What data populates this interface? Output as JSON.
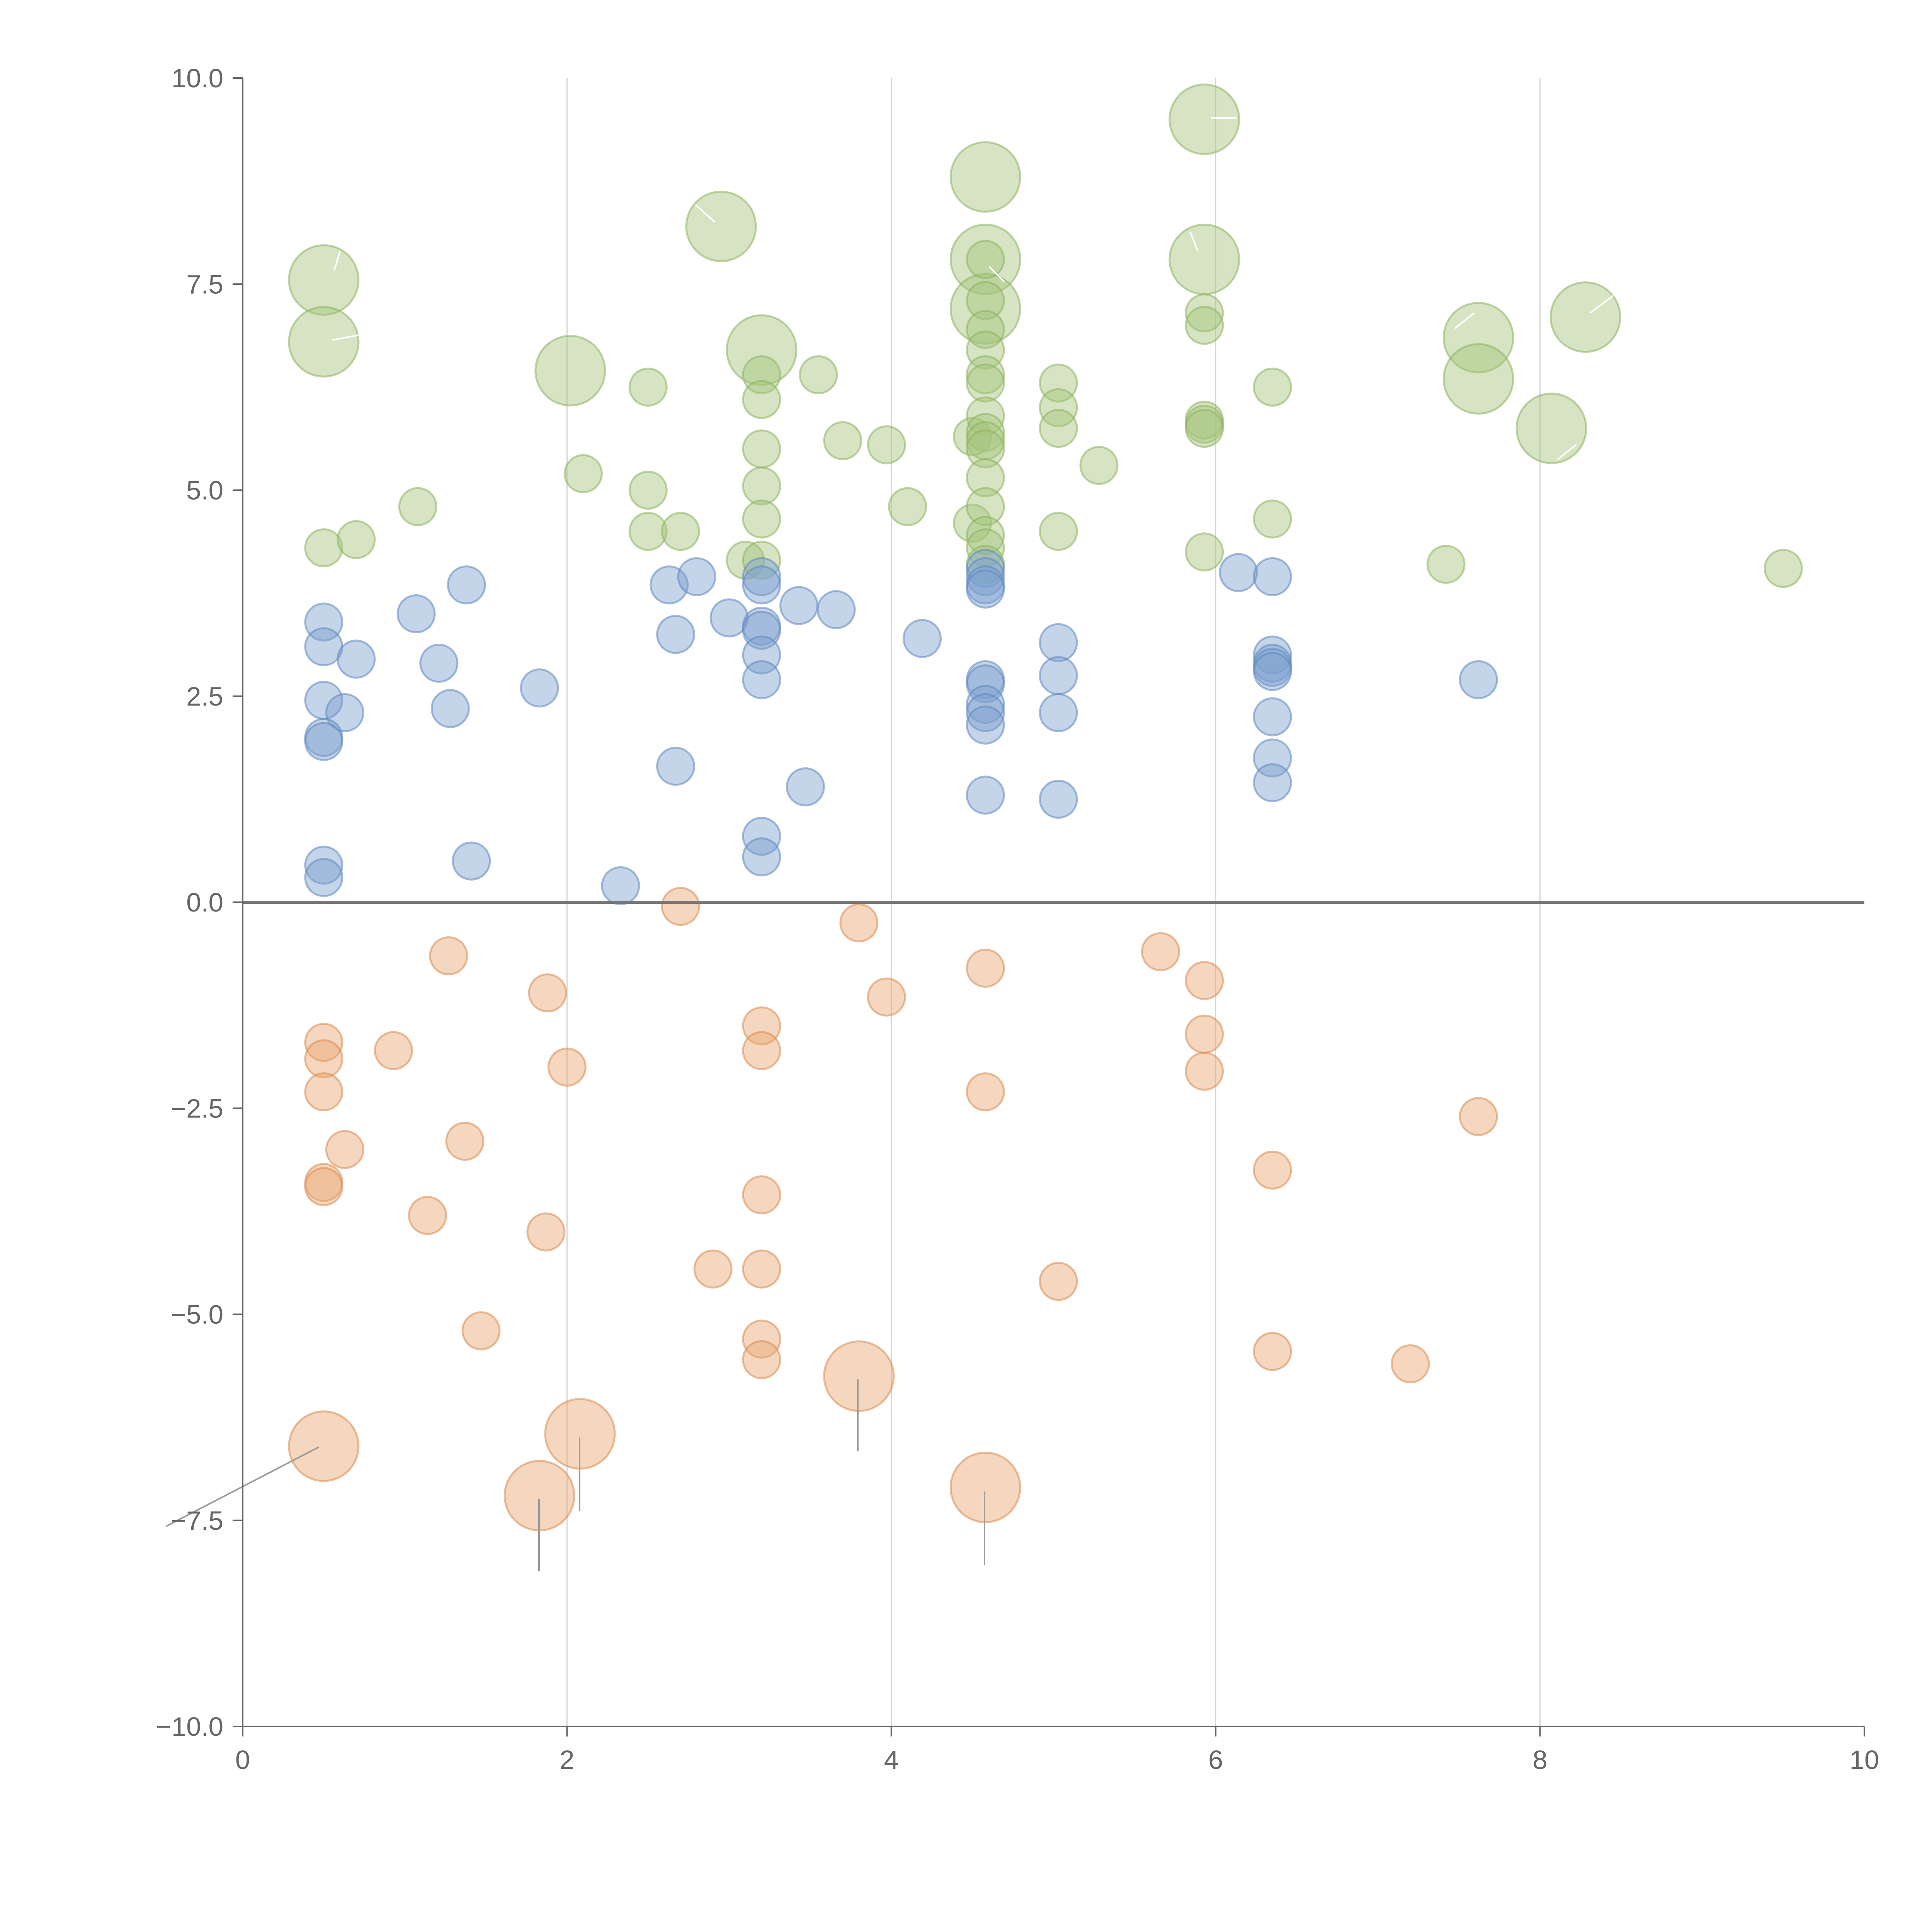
{
  "chart_data": {
    "type": "scatter",
    "title": "",
    "xlabel": "",
    "ylabel": "",
    "xlim": [
      0,
      10
    ],
    "ylim": [
      -10,
      10
    ],
    "x_ticks": [
      0,
      2,
      4,
      6,
      8,
      10
    ],
    "x_tick_labels": [
      "0",
      "2",
      "4",
      "6",
      "8",
      "10"
    ],
    "y_ticks": [
      -10,
      -7.5,
      -5,
      -2.5,
      0,
      2.5,
      5,
      7.5,
      10
    ],
    "y_tick_labels": [
      "−10.0",
      "−7.5",
      "−5.0",
      "−2.5",
      "0.0",
      "2.5",
      "5.0",
      "7.5",
      "10.0"
    ],
    "vertical_grid_at": [
      2,
      4,
      6,
      8
    ],
    "reference_line_y": 0,
    "marker_alpha": 0.45,
    "series": [
      {
        "name": "green",
        "color": "#a3c47a",
        "stroke": "#8db35e",
        "points": [
          {
            "x": 0.5,
            "y": 7.55,
            "s": "l"
          },
          {
            "x": 0.5,
            "y": 6.8,
            "s": "l"
          },
          {
            "x": 0.5,
            "y": 4.3
          },
          {
            "x": 0.7,
            "y": 4.4
          },
          {
            "x": 1.08,
            "y": 4.8
          },
          {
            "x": 2.02,
            "y": 6.45,
            "s": "l"
          },
          {
            "x": 2.1,
            "y": 5.2
          },
          {
            "x": 2.5,
            "y": 6.25
          },
          {
            "x": 2.5,
            "y": 5.0
          },
          {
            "x": 2.5,
            "y": 4.5
          },
          {
            "x": 2.7,
            "y": 4.5
          },
          {
            "x": 2.95,
            "y": 8.2,
            "s": "l"
          },
          {
            "x": 3.1,
            "y": 4.15
          },
          {
            "x": 3.2,
            "y": 6.7,
            "s": "l"
          },
          {
            "x": 3.2,
            "y": 6.4
          },
          {
            "x": 3.2,
            "y": 6.1
          },
          {
            "x": 3.2,
            "y": 5.5
          },
          {
            "x": 3.2,
            "y": 5.05
          },
          {
            "x": 3.2,
            "y": 4.65
          },
          {
            "x": 3.2,
            "y": 4.15
          },
          {
            "x": 3.55,
            "y": 6.4
          },
          {
            "x": 3.7,
            "y": 5.6
          },
          {
            "x": 3.97,
            "y": 5.55
          },
          {
            "x": 4.1,
            "y": 4.8
          },
          {
            "x": 4.5,
            "y": 5.65
          },
          {
            "x": 4.5,
            "y": 4.6
          },
          {
            "x": 4.58,
            "y": 8.8,
            "s": "l"
          },
          {
            "x": 4.58,
            "y": 7.8,
            "s": "l"
          },
          {
            "x": 4.58,
            "y": 7.2,
            "s": "l"
          },
          {
            "x": 4.58,
            "y": 7.8
          },
          {
            "x": 4.58,
            "y": 7.3
          },
          {
            "x": 4.58,
            "y": 6.95
          },
          {
            "x": 4.58,
            "y": 6.7
          },
          {
            "x": 4.58,
            "y": 6.4
          },
          {
            "x": 4.58,
            "y": 6.3
          },
          {
            "x": 4.58,
            "y": 5.9
          },
          {
            "x": 4.58,
            "y": 5.7
          },
          {
            "x": 4.58,
            "y": 5.6
          },
          {
            "x": 4.58,
            "y": 5.5
          },
          {
            "x": 4.58,
            "y": 5.15
          },
          {
            "x": 4.58,
            "y": 4.8
          },
          {
            "x": 4.58,
            "y": 4.45
          },
          {
            "x": 4.58,
            "y": 4.3
          },
          {
            "x": 4.58,
            "y": 4.1
          },
          {
            "x": 5.03,
            "y": 6.3
          },
          {
            "x": 5.03,
            "y": 6.0
          },
          {
            "x": 5.03,
            "y": 5.75
          },
          {
            "x": 5.03,
            "y": 4.5
          },
          {
            "x": 5.28,
            "y": 5.3
          },
          {
            "x": 5.93,
            "y": 9.5,
            "s": "l"
          },
          {
            "x": 5.93,
            "y": 7.8,
            "s": "l"
          },
          {
            "x": 5.93,
            "y": 7.15
          },
          {
            "x": 5.93,
            "y": 7.0
          },
          {
            "x": 5.93,
            "y": 5.85
          },
          {
            "x": 5.93,
            "y": 5.8
          },
          {
            "x": 5.93,
            "y": 5.75
          },
          {
            "x": 5.93,
            "y": 4.25
          },
          {
            "x": 6.35,
            "y": 6.25
          },
          {
            "x": 6.35,
            "y": 4.65
          },
          {
            "x": 7.42,
            "y": 4.1
          },
          {
            "x": 7.62,
            "y": 6.85,
            "s": "l"
          },
          {
            "x": 7.62,
            "y": 6.35,
            "s": "l"
          },
          {
            "x": 8.07,
            "y": 5.75,
            "s": "l"
          },
          {
            "x": 8.28,
            "y": 7.1,
            "s": "l"
          },
          {
            "x": 9.5,
            "y": 4.05
          }
        ]
      },
      {
        "name": "blue",
        "color": "#7d9fcf",
        "stroke": "#5f86c0",
        "points": [
          {
            "x": 0.5,
            "y": 3.4
          },
          {
            "x": 0.5,
            "y": 3.1
          },
          {
            "x": 0.7,
            "y": 2.95
          },
          {
            "x": 0.5,
            "y": 2.45
          },
          {
            "x": 0.63,
            "y": 2.3
          },
          {
            "x": 0.5,
            "y": 2.0
          },
          {
            "x": 0.5,
            "y": 1.95
          },
          {
            "x": 0.5,
            "y": 0.45
          },
          {
            "x": 0.5,
            "y": 0.3
          },
          {
            "x": 1.07,
            "y": 3.5
          },
          {
            "x": 1.21,
            "y": 2.9
          },
          {
            "x": 1.28,
            "y": 2.35
          },
          {
            "x": 1.38,
            "y": 3.85
          },
          {
            "x": 1.41,
            "y": 0.5
          },
          {
            "x": 1.83,
            "y": 2.6
          },
          {
            "x": 2.33,
            "y": 0.2
          },
          {
            "x": 2.63,
            "y": 3.85
          },
          {
            "x": 2.67,
            "y": 3.25
          },
          {
            "x": 2.67,
            "y": 1.65
          },
          {
            "x": 2.8,
            "y": 3.95
          },
          {
            "x": 3.0,
            "y": 3.45
          },
          {
            "x": 3.2,
            "y": 3.95
          },
          {
            "x": 3.2,
            "y": 3.85
          },
          {
            "x": 3.2,
            "y": 3.35
          },
          {
            "x": 3.2,
            "y": 3.3
          },
          {
            "x": 3.2,
            "y": 3.0
          },
          {
            "x": 3.2,
            "y": 2.7
          },
          {
            "x": 3.2,
            "y": 0.8
          },
          {
            "x": 3.2,
            "y": 0.55
          },
          {
            "x": 3.43,
            "y": 3.6
          },
          {
            "x": 3.47,
            "y": 1.4
          },
          {
            "x": 3.66,
            "y": 3.55
          },
          {
            "x": 4.19,
            "y": 3.2
          },
          {
            "x": 4.58,
            "y": 4.05
          },
          {
            "x": 4.58,
            "y": 3.95
          },
          {
            "x": 4.58,
            "y": 3.85
          },
          {
            "x": 4.58,
            "y": 3.8
          },
          {
            "x": 4.58,
            "y": 2.7
          },
          {
            "x": 4.58,
            "y": 2.65
          },
          {
            "x": 4.58,
            "y": 2.4
          },
          {
            "x": 4.58,
            "y": 2.3
          },
          {
            "x": 4.58,
            "y": 2.15
          },
          {
            "x": 4.58,
            "y": 1.3
          },
          {
            "x": 5.03,
            "y": 3.15
          },
          {
            "x": 5.03,
            "y": 2.75
          },
          {
            "x": 5.03,
            "y": 2.3
          },
          {
            "x": 5.03,
            "y": 1.25
          },
          {
            "x": 6.14,
            "y": 4.0
          },
          {
            "x": 6.35,
            "y": 3.95
          },
          {
            "x": 6.35,
            "y": 3.0
          },
          {
            "x": 6.35,
            "y": 2.9
          },
          {
            "x": 6.35,
            "y": 2.85
          },
          {
            "x": 6.35,
            "y": 2.8
          },
          {
            "x": 6.35,
            "y": 2.25
          },
          {
            "x": 6.35,
            "y": 1.75
          },
          {
            "x": 6.35,
            "y": 1.45
          },
          {
            "x": 7.62,
            "y": 2.7
          }
        ]
      },
      {
        "name": "orange",
        "color": "#e8a670",
        "stroke": "#d98b50",
        "points": [
          {
            "x": 0.5,
            "y": -1.7
          },
          {
            "x": 0.5,
            "y": -1.9
          },
          {
            "x": 0.5,
            "y": -2.3
          },
          {
            "x": 0.63,
            "y": -3.0
          },
          {
            "x": 0.5,
            "y": -3.4
          },
          {
            "x": 0.5,
            "y": -3.45
          },
          {
            "x": 0.5,
            "y": -6.6,
            "s": "l"
          },
          {
            "x": 0.93,
            "y": -1.8
          },
          {
            "x": 1.14,
            "y": -3.8
          },
          {
            "x": 1.27,
            "y": -0.65
          },
          {
            "x": 1.37,
            "y": -2.9
          },
          {
            "x": 1.47,
            "y": -5.2
          },
          {
            "x": 1.83,
            "y": -7.2,
            "s": "l"
          },
          {
            "x": 1.87,
            "y": -4.0
          },
          {
            "x": 1.88,
            "y": -1.1
          },
          {
            "x": 2.0,
            "y": -2.0
          },
          {
            "x": 2.08,
            "y": -6.45,
            "s": "l"
          },
          {
            "x": 2.7,
            "y": -0.05
          },
          {
            "x": 2.9,
            "y": -4.45
          },
          {
            "x": 3.2,
            "y": -1.5
          },
          {
            "x": 3.2,
            "y": -1.8
          },
          {
            "x": 3.2,
            "y": -3.55
          },
          {
            "x": 3.2,
            "y": -4.45
          },
          {
            "x": 3.2,
            "y": -5.3
          },
          {
            "x": 3.2,
            "y": -5.55
          },
          {
            "x": 3.8,
            "y": -5.75,
            "s": "l"
          },
          {
            "x": 3.8,
            "y": -0.25
          },
          {
            "x": 3.97,
            "y": -1.15
          },
          {
            "x": 4.58,
            "y": -0.8
          },
          {
            "x": 4.58,
            "y": -2.3
          },
          {
            "x": 4.58,
            "y": -7.1,
            "s": "l"
          },
          {
            "x": 5.03,
            "y": -4.6
          },
          {
            "x": 5.66,
            "y": -0.6
          },
          {
            "x": 5.93,
            "y": -0.95
          },
          {
            "x": 5.93,
            "y": -1.6
          },
          {
            "x": 5.93,
            "y": -2.05
          },
          {
            "x": 6.35,
            "y": -3.25
          },
          {
            "x": 6.35,
            "y": -5.45
          },
          {
            "x": 7.2,
            "y": -5.6
          },
          {
            "x": 7.62,
            "y": -2.6
          }
        ]
      }
    ]
  }
}
